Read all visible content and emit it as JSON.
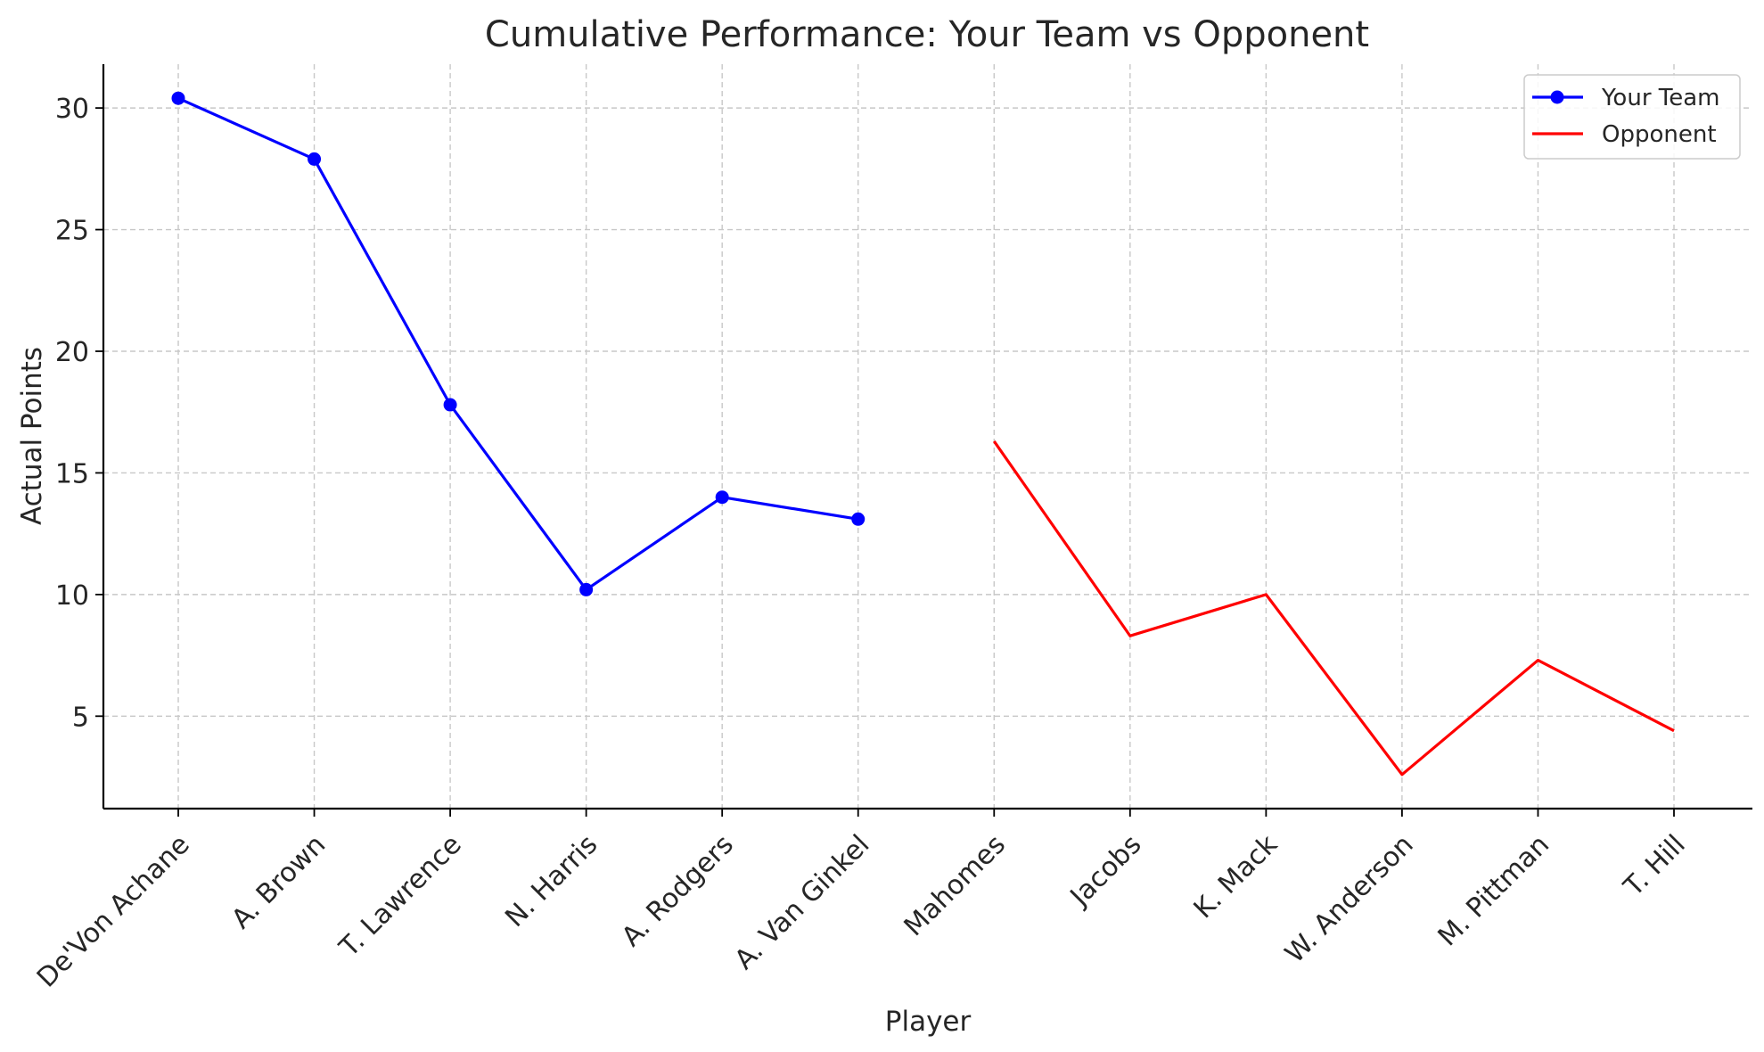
{
  "chart_data": {
    "type": "line",
    "title": "Cumulative Performance: Your Team vs Opponent",
    "xlabel": "Player",
    "ylabel": "Actual Points",
    "categories": [
      "De'Von Achane",
      "A. Brown",
      "T. Lawrence",
      "N. Harris",
      "A. Rodgers",
      "A. Van Ginkel",
      "Mahomes",
      "Jacobs",
      "K. Mack",
      "W. Anderson",
      "M. Pittman",
      "T. Hill"
    ],
    "ylim": [
      1.2,
      31.8
    ],
    "yticks": [
      5,
      10,
      15,
      20,
      25,
      30
    ],
    "grid": true,
    "legend_position": "top-right",
    "series": [
      {
        "name": "Your Team",
        "color": "#0000ff",
        "marker": "circle",
        "values": [
          30.4,
          27.9,
          17.8,
          10.2,
          14.0,
          13.1,
          null,
          null,
          null,
          null,
          null,
          null
        ]
      },
      {
        "name": "Opponent",
        "color": "#ff0000",
        "marker": "none",
        "values": [
          null,
          null,
          null,
          null,
          null,
          null,
          16.3,
          8.3,
          10.0,
          2.6,
          7.3,
          4.4
        ]
      }
    ]
  }
}
